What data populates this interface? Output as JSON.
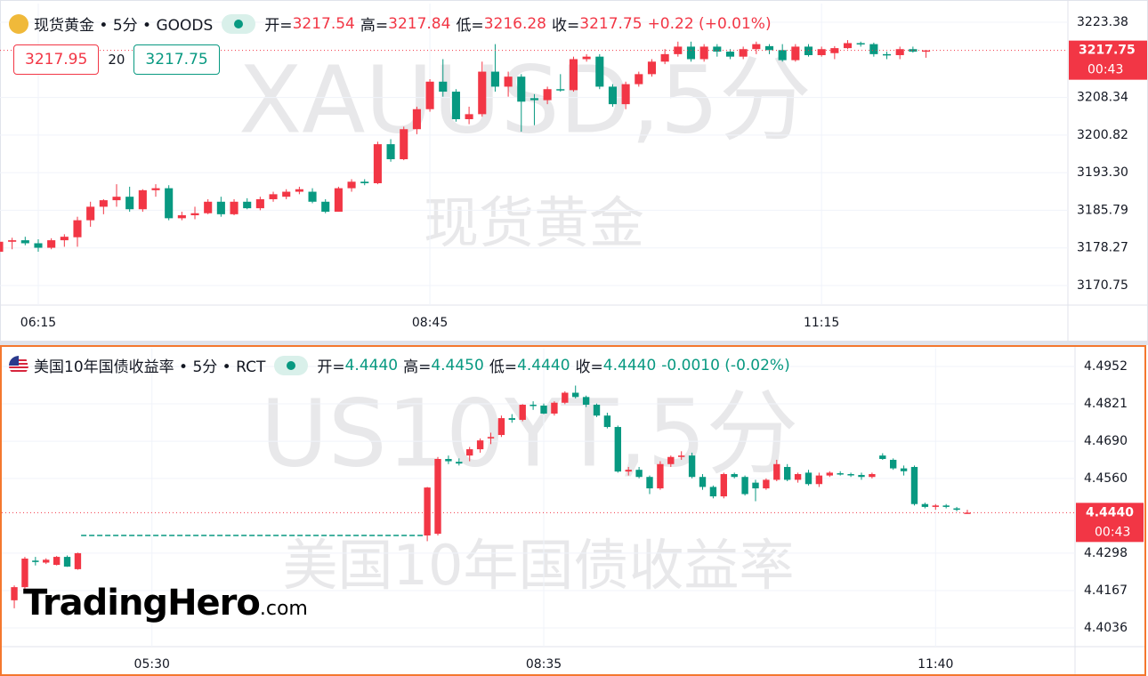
{
  "chart_data": [
    {
      "type": "candlestick",
      "header": {
        "symbol": "现货黄金 • 5分 • GOODS",
        "open_label": "开=",
        "open": 3217.54,
        "high_label": "高=",
        "high": 3217.84,
        "low_label": "低=",
        "low": 3216.28,
        "close_label": "收=",
        "close": 3217.75,
        "change": "+0.22 (+0.01%)"
      },
      "trade": {
        "sell": 3217.95,
        "spread": 20,
        "buy": 3217.75
      },
      "watermark": "XAUUSD,5分",
      "watermark_name": "现货黄金",
      "up_color": "#f23645",
      "down_color": "#089981",
      "ylim": [
        3166.84,
        3227.11
      ],
      "xlim": [
        0.07,
        81.87
      ],
      "yticks": [
        3223.38,
        3208.34,
        {
          "value": 3200.82,
          "label": "3200.82"
        },
        {
          "value": 3193.3,
          "label": "3193.30"
        },
        3185.79,
        3178.27,
        3170.75
      ],
      "xticks": [
        {
          "value": 3,
          "label": "06:15"
        },
        {
          "value": 33,
          "label": "08:45"
        },
        {
          "value": 63,
          "label": "11:15"
        }
      ],
      "price_label": 3217.75,
      "countdown": "00:43",
      "ohlc": [
        [
          3177.5,
          3180.0,
          3176.5,
          3179.5
        ],
        [
          3179.5,
          3180.3,
          3178.0,
          3179.8
        ],
        [
          3179.8,
          3180.5,
          3178.8,
          3179.2
        ],
        [
          3179.2,
          3180.0,
          3177.5,
          3178.3
        ],
        [
          3178.3,
          3180.2,
          3178.0,
          3179.8
        ],
        [
          3179.8,
          3181.0,
          3178.5,
          3180.5
        ],
        [
          3180.4,
          3184.5,
          3178.5,
          3183.8
        ],
        [
          3183.8,
          3187.5,
          3182.5,
          3186.5
        ],
        [
          3186.5,
          3188.0,
          3185.0,
          3187.8
        ],
        [
          3187.8,
          3191.0,
          3186.5,
          3188.5
        ],
        [
          3188.5,
          3190.5,
          3185.5,
          3186.0
        ],
        [
          3186.0,
          3190.0,
          3185.5,
          3189.8
        ],
        [
          3189.8,
          3191.0,
          3188.5,
          3190.2
        ],
        [
          3190.2,
          3190.8,
          3183.8,
          3184.2
        ],
        [
          3184.2,
          3185.5,
          3183.8,
          3184.8
        ],
        [
          3184.8,
          3186.5,
          3184.0,
          3185.2
        ],
        [
          3185.2,
          3188.0,
          3185.0,
          3187.5
        ],
        [
          3187.5,
          3188.5,
          3184.5,
          3185.0
        ],
        [
          3185.0,
          3188.0,
          3184.8,
          3187.5
        ],
        [
          3187.5,
          3188.2,
          3186.0,
          3186.2
        ],
        [
          3186.2,
          3188.5,
          3185.8,
          3188.0
        ],
        [
          3188.0,
          3189.5,
          3187.5,
          3189.0
        ],
        [
          3188.5,
          3190.0,
          3188.0,
          3189.5
        ],
        [
          3189.5,
          3190.5,
          3189.0,
          3190.0
        ],
        [
          3189.5,
          3190.2,
          3187.2,
          3187.5
        ],
        [
          3187.5,
          3188.0,
          3185.2,
          3185.5
        ],
        [
          3185.5,
          3190.5,
          3185.5,
          3190.2
        ],
        [
          3190.2,
          3192.0,
          3189.5,
          3191.5
        ],
        [
          3191.5,
          3192.0,
          3190.8,
          3191.2
        ],
        [
          3191.2,
          3199.5,
          3191.0,
          3199.0
        ],
        [
          3199.0,
          3200.0,
          3195.5,
          3196.0
        ],
        [
          3196.0,
          3202.5,
          3195.8,
          3202.0
        ],
        [
          3202.0,
          3206.5,
          3201.0,
          3206.0
        ],
        [
          3206.0,
          3212.0,
          3205.5,
          3211.5
        ],
        [
          3211.5,
          3216.0,
          3208.5,
          3209.5
        ],
        [
          3209.5,
          3210.0,
          3203.5,
          3204.0
        ],
        [
          3204.0,
          3206.5,
          3203.0,
          3205.0
        ],
        [
          3205.0,
          3215.5,
          3204.5,
          3213.5
        ],
        [
          3213.5,
          3219.0,
          3209.5,
          3210.5
        ],
        [
          3210.5,
          3213.5,
          3208.5,
          3212.5
        ],
        [
          3212.5,
          3213.0,
          3201.5,
          3207.5
        ],
        [
          3208.2,
          3209.0,
          3202.8,
          3207.8
        ],
        [
          3207.8,
          3210.5,
          3207.0,
          3210.0
        ],
        [
          3210.0,
          3213.0,
          3209.5,
          3209.8
        ],
        [
          3209.8,
          3216.5,
          3209.5,
          3216.0
        ],
        [
          3216.0,
          3217.0,
          3215.5,
          3216.5
        ],
        [
          3216.5,
          3217.0,
          3210.0,
          3210.5
        ],
        [
          3210.5,
          3211.0,
          3206.5,
          3207.0
        ],
        [
          3207.0,
          3211.5,
          3206.0,
          3211.0
        ],
        [
          3211.0,
          3213.5,
          3210.5,
          3213.0
        ],
        [
          3213.0,
          3216.0,
          3212.5,
          3215.5
        ],
        [
          3215.5,
          3218.0,
          3215.0,
          3217.0
        ],
        [
          3217.0,
          3219.5,
          3216.5,
          3218.5
        ],
        [
          3218.5,
          3219.5,
          3215.5,
          3216.0
        ],
        [
          3216.0,
          3219.0,
          3215.5,
          3218.5
        ],
        [
          3218.5,
          3219.0,
          3216.5,
          3217.5
        ],
        [
          3217.5,
          3218.0,
          3216.0,
          3216.5
        ],
        [
          3216.5,
          3218.5,
          3216.0,
          3218.0
        ],
        [
          3218.0,
          3219.5,
          3217.0,
          3219.0
        ],
        [
          3218.6,
          3219.0,
          3217.0,
          3217.8
        ],
        [
          3217.8,
          3219.0,
          3215.5,
          3215.8
        ],
        [
          3215.8,
          3219.0,
          3215.5,
          3218.5
        ],
        [
          3218.5,
          3219.0,
          3216.5,
          3216.8
        ],
        [
          3216.8,
          3218.5,
          3216.5,
          3218.0
        ],
        [
          3217.2,
          3218.6,
          3216.0,
          3218.2
        ],
        [
          3218.2,
          3219.8,
          3218.0,
          3219.2
        ],
        [
          3219.2,
          3219.5,
          3218.5,
          3219.0
        ],
        [
          3219.0,
          3219.3,
          3216.5,
          3217.0
        ],
        [
          3217.0,
          3217.5,
          3216.0,
          3216.8
        ],
        [
          3216.8,
          3218.5,
          3216.0,
          3218.0
        ],
        [
          3218.0,
          3218.5,
          3217.3,
          3217.5
        ],
        [
          3217.54,
          3217.84,
          3216.28,
          3217.75
        ]
      ]
    },
    {
      "type": "candlestick",
      "header": {
        "symbol": "美国10年国债收益率 • 5分 • RCT",
        "open_label": "开=",
        "open": "4.4440",
        "high_label": "高=",
        "high": "4.4450",
        "low_label": "低=",
        "low": "4.4440",
        "close_label": "收=",
        "close": "4.4440",
        "change": "-0.0010 (-0.02%)"
      },
      "watermark": "US10YT,5分",
      "watermark_name": "美国10年国债收益率",
      "logo": "TradingHero",
      "logo_suffix": ".com",
      "up_color": "#f23645",
      "down_color": "#089981",
      "ylim": [
        4.39706,
        4.50143
      ],
      "xlim": [
        -1.18,
        100.17
      ],
      "yticks": [
        4.4952,
        4.4821,
        {
          "value": 4.469,
          "label": "4.4690"
        },
        {
          "value": 4.456,
          "label": "4.4560"
        },
        4.4298,
        4.4167,
        4.4036
      ],
      "xticks": [
        {
          "value": 13,
          "label": "05:30"
        },
        {
          "value": 50,
          "label": "08:35"
        },
        {
          "value": 87,
          "label": "11:40"
        }
      ],
      "price_label": {
        "value": 4.444,
        "label": "4.4440"
      },
      "countdown": "00:43",
      "gap_level": 4.436,
      "ohlc": [
        [
          4.4133,
          4.4185,
          4.4105,
          4.4179
        ],
        [
          4.4179,
          4.4285,
          4.417,
          4.4279
        ],
        [
          4.4272,
          4.4285,
          4.4255,
          4.4267
        ],
        [
          4.4265,
          4.428,
          4.426,
          4.4275
        ],
        [
          4.4257,
          4.4288,
          4.4255,
          4.4285
        ],
        [
          4.4285,
          4.429,
          4.425,
          4.4251
        ],
        [
          4.4242,
          4.43,
          4.424,
          4.4298
        ],
        null,
        null,
        null,
        null,
        null,
        null,
        null,
        null,
        null,
        null,
        null,
        null,
        null,
        null,
        null,
        null,
        null,
        null,
        null,
        null,
        null,
        null,
        null,
        null,
        null,
        null,
        null,
        null,
        null,
        null,
        null,
        null,
        [
          4.436,
          4.453,
          4.434,
          4.4528
        ],
        [
          4.4366,
          4.4635,
          4.436,
          4.4628
        ],
        [
          4.4628,
          4.464,
          4.461,
          4.462
        ],
        [
          4.4618,
          4.463,
          4.4605,
          4.4612
        ],
        [
          4.464,
          4.467,
          4.462,
          4.4662
        ],
        [
          4.4662,
          4.47,
          4.465,
          4.4693
        ],
        [
          4.47,
          4.472,
          4.468,
          4.4705
        ],
        [
          4.4712,
          4.478,
          4.4705,
          4.4771
        ],
        [
          4.4771,
          4.4785,
          4.4755,
          4.4765
        ],
        [
          4.4765,
          4.482,
          4.476,
          4.4818
        ],
        [
          4.4818,
          4.483,
          4.48,
          4.4815
        ],
        [
          4.4815,
          4.4822,
          4.4785,
          4.4787
        ],
        [
          4.4787,
          4.483,
          4.478,
          4.4825
        ],
        [
          4.4825,
          4.4865,
          4.482,
          4.486
        ],
        [
          4.486,
          4.4885,
          4.484,
          4.4845
        ],
        [
          4.4845,
          4.485,
          4.481,
          4.4818
        ],
        [
          4.4818,
          4.4822,
          4.4775,
          4.478
        ],
        [
          4.478,
          4.479,
          4.4735,
          4.474
        ],
        [
          4.474,
          4.4745,
          4.458,
          4.4584
        ],
        [
          4.4584,
          4.46,
          4.457,
          4.459
        ],
        [
          4.459,
          4.46,
          4.456,
          4.4565
        ],
        [
          4.4565,
          4.457,
          4.4505,
          4.4525
        ],
        [
          4.4525,
          4.462,
          4.452,
          4.461
        ],
        [
          4.461,
          4.464,
          4.46,
          4.4635
        ],
        [
          4.4635,
          4.4655,
          4.4625,
          4.464
        ],
        [
          4.464,
          4.465,
          4.456,
          4.4565
        ],
        [
          4.4565,
          4.4575,
          4.452,
          4.453
        ],
        [
          4.453,
          4.4535,
          4.449,
          4.4497
        ],
        [
          4.4497,
          4.458,
          4.449,
          4.4575
        ],
        [
          4.4575,
          4.458,
          4.456,
          4.4565
        ],
        [
          4.4565,
          4.457,
          4.45,
          4.4505
        ],
        [
          4.4545,
          4.4555,
          4.448,
          4.4525
        ],
        [
          4.4525,
          4.456,
          4.452,
          4.4555
        ],
        [
          4.4555,
          4.4625,
          4.455,
          4.461
        ],
        [
          4.46,
          4.461,
          4.455,
          4.4555
        ],
        [
          4.4555,
          4.458,
          4.4545,
          4.4575
        ],
        [
          4.458,
          4.459,
          4.4535,
          4.454
        ],
        [
          4.454,
          4.458,
          4.453,
          4.457
        ],
        [
          4.457,
          4.4585,
          4.4565,
          4.458
        ],
        [
          4.4578,
          4.4585,
          4.457,
          4.4575
        ],
        [
          4.4575,
          4.458,
          4.4565,
          4.4572
        ],
        [
          4.4572,
          4.458,
          4.4555,
          4.4565
        ],
        [
          4.4565,
          4.458,
          4.456,
          4.4575
        ],
        [
          4.464,
          4.4648,
          4.4625,
          4.4628
        ],
        [
          4.4625,
          4.463,
          4.459,
          4.4595
        ],
        [
          4.4595,
          4.4605,
          4.457,
          4.4585
        ],
        [
          4.46,
          4.4605,
          4.4465,
          4.447
        ],
        [
          4.447,
          4.4475,
          4.4455,
          4.446
        ],
        [
          4.446,
          4.447,
          4.445,
          4.4465
        ],
        [
          4.4465,
          4.447,
          4.4455,
          4.446
        ],
        [
          4.4455,
          4.446,
          4.4445,
          4.445
        ],
        [
          4.444,
          4.445,
          4.444,
          4.444
        ]
      ]
    }
  ]
}
